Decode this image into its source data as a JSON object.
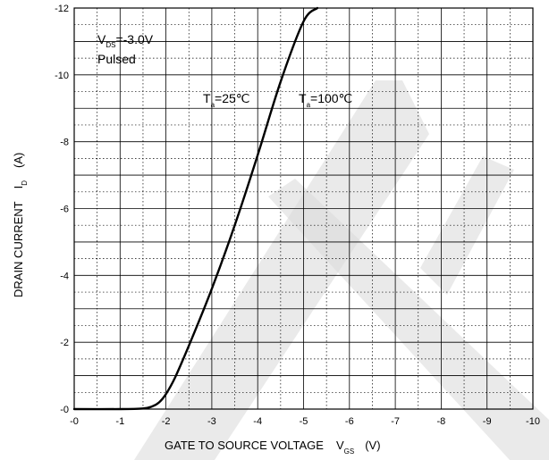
{
  "chart_data": {
    "type": "line",
    "xlabel": "GATE TO SOURCE VOLTAGE",
    "xlabel_symbol": "V",
    "xlabel_symbol_sub": "GS",
    "xlabel_unit": "(V)",
    "ylabel": "DRAIN CURRENT",
    "ylabel_symbol": "I",
    "ylabel_symbol_sub": "D",
    "ylabel_unit": "(A)",
    "xlim": [
      0,
      -10
    ],
    "ylim": [
      0,
      -12
    ],
    "x_ticks": [
      0,
      -1,
      -2,
      -3,
      -4,
      -5,
      -6,
      -7,
      -8,
      -9,
      -10
    ],
    "x_tick_labels": [
      "-0",
      "-1",
      "-2",
      "-3",
      "-4",
      "-5",
      "-6",
      "-7",
      "-8",
      "-9",
      "-10"
    ],
    "y_ticks": [
      0,
      -2,
      -4,
      -6,
      -8,
      -10,
      -12
    ],
    "y_tick_labels": [
      "-0",
      "-2",
      "-4",
      "-6",
      "-8",
      "-10",
      "-12"
    ],
    "grid": true,
    "annotations": {
      "condition_line1_main": "V",
      "condition_line1_sub": "DS",
      "condition_line1_rest": "=-3.0V",
      "condition_line2": "Pulsed",
      "series_label_1_main": "T",
      "series_label_1_sub": "a",
      "series_label_1_rest": "=25℃",
      "series_label_2_main": "T",
      "series_label_2_sub": "a",
      "series_label_2_rest": "=100℃"
    },
    "series": [
      {
        "x": [
          0,
          -1.0,
          -1.5,
          -1.7,
          -1.85,
          -2.0,
          -2.2,
          -2.5,
          -3.0,
          -3.5,
          -4.0,
          -4.5,
          -5.0,
          -5.3
        ],
        "y": [
          0,
          0,
          -0.02,
          -0.08,
          -0.2,
          -0.45,
          -0.95,
          -1.9,
          -3.6,
          -5.5,
          -7.6,
          -9.8,
          -11.6,
          -12.0
        ]
      }
    ]
  }
}
